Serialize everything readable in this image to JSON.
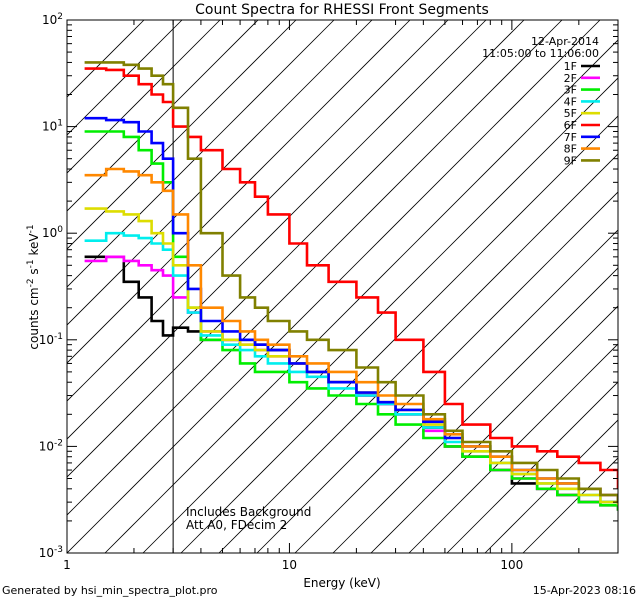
{
  "chart_data": {
    "type": "line",
    "title": "Count Spectra for RHESSI Front Segments",
    "xlabel": "Energy (keV)",
    "ylabel": "counts cm-2 s-1 keV-1",
    "x_scale": "log",
    "y_scale": "log",
    "xlim": [
      1,
      300
    ],
    "ylim": [
      0.001,
      100
    ],
    "x_ticks": [
      {
        "value": 1,
        "label": "1"
      },
      {
        "value": 10,
        "label": "10"
      },
      {
        "value": 100,
        "label": "100"
      }
    ],
    "y_ticks": [
      {
        "value": 0.001,
        "base": "10",
        "exp": "-3"
      },
      {
        "value": 0.01,
        "base": "10",
        "exp": "-2"
      },
      {
        "value": 0.1,
        "base": "10",
        "exp": "-1"
      },
      {
        "value": 1,
        "base": "10",
        "exp": "0"
      },
      {
        "value": 10,
        "base": "10",
        "exp": "1"
      },
      {
        "value": 100,
        "base": "10",
        "exp": "2"
      }
    ],
    "date": "12-Apr-2014",
    "time_range": "11:05:00 to 11:06:00",
    "cutoff_energy": 3,
    "annotations": [
      "Includes Background",
      "Att A0, FDecim 2"
    ],
    "series": [
      {
        "name": "1F",
        "color": "#000000",
        "x": [
          1.2,
          1.5,
          1.8,
          2.1,
          2.4,
          2.7,
          3.0,
          3.5,
          4,
          5,
          6,
          7,
          8,
          10,
          12,
          15,
          20,
          25,
          30,
          40,
          50,
          60,
          80,
          100,
          130,
          160,
          200,
          250,
          300
        ],
        "y": [
          0.6,
          0.6,
          0.35,
          0.25,
          0.15,
          0.11,
          0.13,
          0.12,
          0.1,
          0.1,
          0.1,
          0.09,
          0.08,
          0.06,
          0.05,
          0.04,
          0.03,
          0.025,
          0.02,
          0.015,
          0.01,
          0.008,
          0.006,
          0.0045,
          0.004,
          0.0035,
          0.003,
          0.003,
          0.0025
        ]
      },
      {
        "name": "2F",
        "color": "#ff00ff",
        "x": [
          1.2,
          1.5,
          1.8,
          2.1,
          2.4,
          2.7,
          3.0,
          3.5,
          4,
          5,
          6,
          7,
          8,
          10,
          12,
          15,
          20,
          25,
          30,
          40,
          50,
          60,
          80,
          100,
          130,
          160,
          200,
          250,
          300
        ],
        "y": [
          0.55,
          0.6,
          0.55,
          0.5,
          0.45,
          0.4,
          0.25,
          0.18,
          0.12,
          0.1,
          0.09,
          0.08,
          0.07,
          0.06,
          0.05,
          0.04,
          0.03,
          0.025,
          0.02,
          0.014,
          0.01,
          0.008,
          0.006,
          0.005,
          0.004,
          0.0035,
          0.003,
          0.0028,
          0.0025
        ]
      },
      {
        "name": "3F",
        "color": "#00ee00",
        "x": [
          1.2,
          1.5,
          1.8,
          2.1,
          2.4,
          2.7,
          3.0,
          3.5,
          4,
          5,
          6,
          7,
          8,
          10,
          12,
          15,
          20,
          25,
          30,
          40,
          50,
          60,
          80,
          100,
          130,
          160,
          200,
          250,
          300
        ],
        "y": [
          9,
          9,
          8,
          6,
          4.5,
          3,
          0.6,
          0.2,
          0.1,
          0.08,
          0.06,
          0.05,
          0.05,
          0.04,
          0.035,
          0.03,
          0.025,
          0.02,
          0.016,
          0.012,
          0.01,
          0.008,
          0.006,
          0.005,
          0.004,
          0.0035,
          0.003,
          0.0028,
          0.0025
        ]
      },
      {
        "name": "4F",
        "color": "#00eeee",
        "x": [
          1.2,
          1.5,
          1.8,
          2.1,
          2.4,
          2.7,
          3.0,
          3.5,
          4,
          5,
          6,
          7,
          8,
          10,
          12,
          15,
          20,
          25,
          30,
          40,
          50,
          60,
          80,
          100,
          130,
          160,
          200,
          250,
          300
        ],
        "y": [
          0.85,
          1.0,
          0.95,
          0.9,
          0.8,
          0.7,
          0.4,
          0.18,
          0.11,
          0.09,
          0.08,
          0.07,
          0.06,
          0.05,
          0.045,
          0.035,
          0.03,
          0.025,
          0.02,
          0.015,
          0.011,
          0.009,
          0.007,
          0.0055,
          0.0045,
          0.004,
          0.0035,
          0.003,
          0.0028
        ]
      },
      {
        "name": "5F",
        "color": "#dddd00",
        "x": [
          1.2,
          1.5,
          1.8,
          2.1,
          2.4,
          2.7,
          3.0,
          3.5,
          4,
          5,
          6,
          7,
          8,
          10,
          12,
          15,
          20,
          25,
          30,
          40,
          50,
          60,
          80,
          100,
          130,
          160,
          200,
          250,
          300
        ],
        "y": [
          1.7,
          1.6,
          1.5,
          1.3,
          1.0,
          0.8,
          0.5,
          0.2,
          0.12,
          0.1,
          0.09,
          0.08,
          0.07,
          0.06,
          0.05,
          0.04,
          0.032,
          0.026,
          0.022,
          0.016,
          0.012,
          0.009,
          0.007,
          0.0055,
          0.0045,
          0.004,
          0.0035,
          0.003,
          0.0028
        ]
      },
      {
        "name": "6F",
        "color": "#ff0000",
        "x": [
          1.2,
          1.5,
          1.8,
          2.1,
          2.4,
          2.7,
          3.0,
          3.5,
          4,
          5,
          6,
          7,
          8,
          10,
          12,
          15,
          20,
          25,
          30,
          40,
          50,
          60,
          80,
          100,
          130,
          160,
          200,
          250,
          300
        ],
        "y": [
          35,
          34,
          30,
          25,
          20,
          17,
          10,
          8,
          6,
          4,
          3,
          2.2,
          1.5,
          0.8,
          0.5,
          0.35,
          0.25,
          0.18,
          0.1,
          0.05,
          0.025,
          0.016,
          0.012,
          0.01,
          0.009,
          0.008,
          0.007,
          0.006,
          0.004
        ]
      },
      {
        "name": "7F",
        "color": "#0000ff",
        "x": [
          1.2,
          1.5,
          1.8,
          2.1,
          2.4,
          2.7,
          3.0,
          3.5,
          4,
          5,
          6,
          7,
          8,
          10,
          12,
          15,
          20,
          25,
          30,
          40,
          50,
          60,
          80,
          100,
          130,
          160,
          200,
          250,
          300
        ],
        "y": [
          12,
          11.5,
          11,
          9,
          7,
          5,
          1.0,
          0.3,
          0.15,
          0.12,
          0.1,
          0.09,
          0.08,
          0.06,
          0.05,
          0.04,
          0.032,
          0.026,
          0.022,
          0.017,
          0.012,
          0.01,
          0.008,
          0.006,
          0.005,
          0.0045,
          0.004,
          0.0035,
          0.003
        ]
      },
      {
        "name": "8F",
        "color": "#ff8800",
        "x": [
          1.2,
          1.5,
          1.8,
          2.1,
          2.4,
          2.7,
          3.0,
          3.5,
          4,
          5,
          6,
          7,
          8,
          10,
          12,
          15,
          20,
          25,
          30,
          40,
          50,
          60,
          80,
          100,
          130,
          160,
          200,
          250,
          300
        ],
        "y": [
          3.5,
          4.0,
          3.8,
          3.5,
          3.0,
          2.5,
          1.5,
          0.5,
          0.2,
          0.15,
          0.12,
          0.1,
          0.09,
          0.07,
          0.06,
          0.05,
          0.04,
          0.03,
          0.025,
          0.018,
          0.013,
          0.01,
          0.008,
          0.006,
          0.005,
          0.0045,
          0.004,
          0.0035,
          0.003
        ]
      },
      {
        "name": "9F",
        "color": "#808000",
        "x": [
          1.2,
          1.5,
          1.8,
          2.1,
          2.4,
          2.7,
          3.0,
          3.5,
          4,
          5,
          6,
          7,
          8,
          10,
          12,
          15,
          20,
          25,
          30,
          40,
          50,
          60,
          80,
          100,
          130,
          160,
          200,
          250,
          300
        ],
        "y": [
          40,
          40,
          38,
          35,
          30,
          25,
          15,
          5,
          1.0,
          0.4,
          0.25,
          0.2,
          0.15,
          0.12,
          0.1,
          0.08,
          0.055,
          0.04,
          0.03,
          0.02,
          0.014,
          0.011,
          0.009,
          0.007,
          0.006,
          0.005,
          0.004,
          0.0035,
          0.003
        ]
      }
    ]
  },
  "footer": {
    "generated_by": "Generated by hsi_min_spectra_plot.pro",
    "timestamp": "15-Apr-2023 08:16"
  }
}
